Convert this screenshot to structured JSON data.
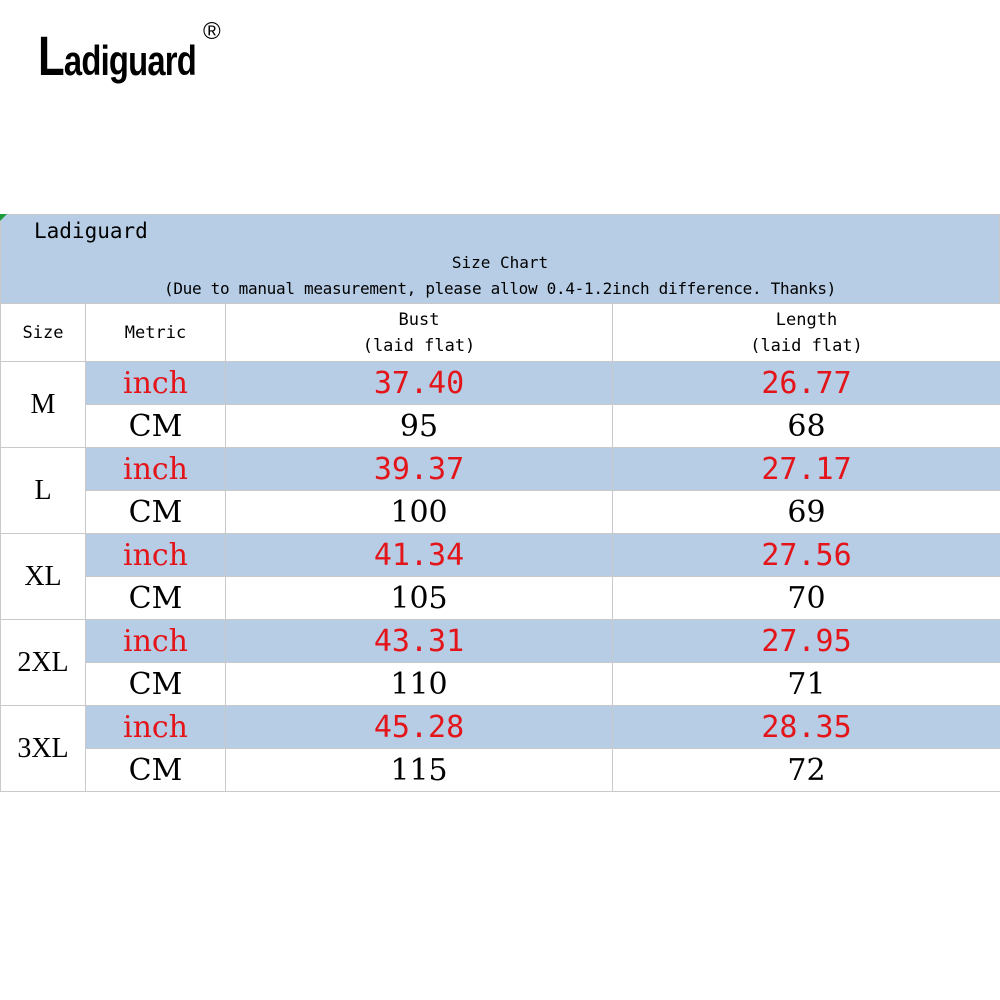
{
  "logo": {
    "first_letter": "L",
    "rest": "adiguard",
    "mark": "®"
  },
  "table": {
    "brand": "Ladiguard",
    "title": "Size Chart",
    "note": "(Due to manual measurement, please allow 0.4-1.2inch difference. Thanks)",
    "headers": {
      "size": "Size",
      "metric": "Metric",
      "bust_line1": "Bust",
      "bust_line2": "(laid flat)",
      "length_line1": "Length",
      "length_line2": "(laid flat)"
    },
    "rows": [
      {
        "size": "M",
        "inch_label": "inch",
        "cm_label": "CM",
        "bust_inch": "37.40",
        "length_inch": "26.77",
        "bust_cm": "95",
        "length_cm": "68"
      },
      {
        "size": "L",
        "inch_label": "inch",
        "cm_label": "CM",
        "bust_inch": "39.37",
        "length_inch": "27.17",
        "bust_cm": "100",
        "length_cm": "69"
      },
      {
        "size": "XL",
        "inch_label": "inch",
        "cm_label": "CM",
        "bust_inch": "41.34",
        "length_inch": "27.56",
        "bust_cm": "105",
        "length_cm": "70"
      },
      {
        "size": "2XL",
        "inch_label": "inch",
        "cm_label": "CM",
        "bust_inch": "43.31",
        "length_inch": "27.95",
        "bust_cm": "110",
        "length_cm": "71"
      },
      {
        "size": "3XL",
        "inch_label": "inch",
        "cm_label": "CM",
        "bust_inch": "45.28",
        "length_inch": "28.35",
        "bust_cm": "115",
        "length_cm": "72"
      }
    ],
    "colors": {
      "header_bg": "#b7cde6",
      "inch_text": "#e3151a",
      "border": "#c9c9c9",
      "corner_mark": "#1e9b3a"
    }
  }
}
